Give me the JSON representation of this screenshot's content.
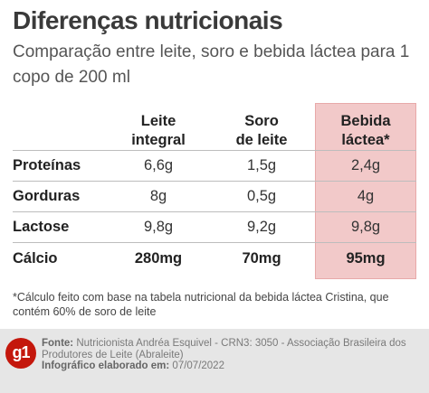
{
  "header": {
    "title": "Diferenças nutricionais",
    "subtitle": "Comparação entre leite, soro e bebida láctea para 1 copo de 200 ml"
  },
  "table": {
    "columns": [
      {
        "line1": "Leite",
        "line2": "integral"
      },
      {
        "line1": "Soro",
        "line2": "de leite"
      },
      {
        "line1": "Bebida",
        "line2": "láctea*"
      }
    ],
    "rows": [
      {
        "label": "Proteínas",
        "values": [
          "6,6g",
          "1,5g",
          "2,4g"
        ]
      },
      {
        "label": "Gorduras",
        "values": [
          "8g",
          "0,5g",
          "4g"
        ]
      },
      {
        "label": "Lactose",
        "values": [
          "9,8g",
          "9,2g",
          "9,8g"
        ]
      },
      {
        "label": "Cálcio",
        "values": [
          "280mg",
          "70mg",
          "95mg"
        ]
      }
    ],
    "highlight_color": "#f2c9c9"
  },
  "footnote": "*Cálculo feito com base na tabela nutricional da bebida láctea Cristina, que contém 60% de soro de leite",
  "footer": {
    "logo_text": "g1",
    "source_label": "Fonte:",
    "source_text": "Nutricionista Andréa Esquivel - CRN3: 3050 - Associação Brasileira dos Produtores de Leite (Abraleite)",
    "credit_label": "Infográfico elaborado em:",
    "credit_date": "07/07/2022",
    "brand_color": "#c4170c"
  }
}
